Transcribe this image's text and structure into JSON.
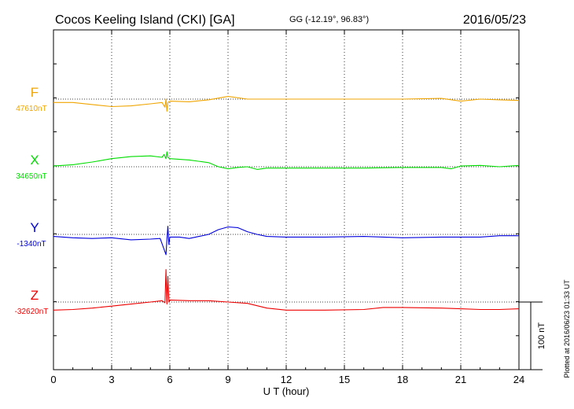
{
  "header": {
    "station": "Cocos Keeling Island (CKI)  [GA]",
    "coords": "GG (-12.19°,  96.83°)",
    "date": "2016/05/23"
  },
  "plotted_note": "Plotted at 2016/06/23 01:33 UT",
  "scale_label": "100 nT",
  "chart_data": {
    "type": "line",
    "title": "Cocos Keeling Island (CKI)  [GA]",
    "xlabel": "U T (hour)",
    "xlim": [
      0,
      24
    ],
    "x_ticks": [
      "0",
      "3",
      "6",
      "9",
      "12",
      "15",
      "18",
      "21",
      "24"
    ],
    "grid": true,
    "scale_bar_nT": 100,
    "series": [
      {
        "name": "F",
        "baseline": "47610nT",
        "color": "#f0a500",
        "offset_nT": 0,
        "x": [
          0,
          1,
          2,
          3,
          4,
          5,
          5.6,
          5.75,
          5.8,
          5.85,
          5.9,
          6,
          7,
          8,
          9,
          10,
          12,
          15,
          18,
          20,
          21,
          22,
          23,
          24
        ],
        "y": [
          -5,
          -5,
          -8,
          -11,
          -10,
          -7,
          -5,
          -12,
          0,
          -18,
          -5,
          -3,
          -4,
          -1,
          4,
          0,
          0,
          0,
          0,
          1,
          -3,
          0,
          -1,
          -2
        ]
      },
      {
        "name": "X",
        "baseline": "34650nT",
        "color": "#00dd00",
        "offset_nT": -100,
        "x": [
          0,
          1,
          2,
          3,
          4,
          5,
          5.6,
          5.7,
          5.8,
          5.85,
          5.9,
          6,
          7,
          8,
          8.5,
          9,
          9.5,
          10,
          10.5,
          11,
          12,
          14,
          16,
          18,
          19,
          20,
          20.5,
          21,
          22,
          23,
          24
        ],
        "y": [
          1,
          3,
          7,
          12,
          15,
          16,
          14,
          18,
          12,
          22,
          14,
          12,
          10,
          6,
          0,
          -3,
          -1,
          0,
          -4,
          -2,
          -2,
          -2,
          -2,
          -1,
          -1,
          -1,
          -3,
          1,
          2,
          0,
          2
        ]
      },
      {
        "name": "Y",
        "baseline": "-1340nT",
        "color": "#0000dd",
        "offset_nT": -200,
        "x": [
          0,
          1,
          2,
          3,
          4,
          5,
          5.5,
          5.8,
          5.85,
          5.9,
          5.95,
          6,
          6.5,
          7,
          7.5,
          8,
          8.5,
          9,
          9.5,
          10,
          10.5,
          11,
          12,
          14,
          16,
          18,
          20,
          22,
          23,
          24
        ],
        "y": [
          -3,
          -5,
          -6,
          -5,
          -8,
          -7,
          -6,
          -30,
          -8,
          12,
          -15,
          -4,
          -4,
          -6,
          -3,
          0,
          7,
          11,
          10,
          4,
          0,
          -3,
          -4,
          -4,
          -3,
          -5,
          -4,
          -4,
          -2,
          -2
        ]
      },
      {
        "name": "Z",
        "baseline": "-32620nT",
        "color": "#ee0000",
        "offset_nT": -300,
        "x": [
          0,
          1,
          2,
          3,
          4,
          5,
          5.6,
          5.75,
          5.8,
          5.85,
          5.9,
          5.95,
          6,
          7,
          8,
          9,
          10,
          11,
          12,
          14,
          16,
          17,
          18,
          20,
          21,
          22,
          23,
          24
        ],
        "y": [
          -12,
          -11,
          -9,
          -6,
          -3,
          0,
          2,
          -1,
          48,
          -3,
          38,
          0,
          3,
          2,
          2,
          0,
          -2,
          -9,
          -12,
          -12,
          -11,
          -8,
          -8,
          -9,
          -10,
          -11,
          -11,
          -10
        ]
      }
    ]
  }
}
